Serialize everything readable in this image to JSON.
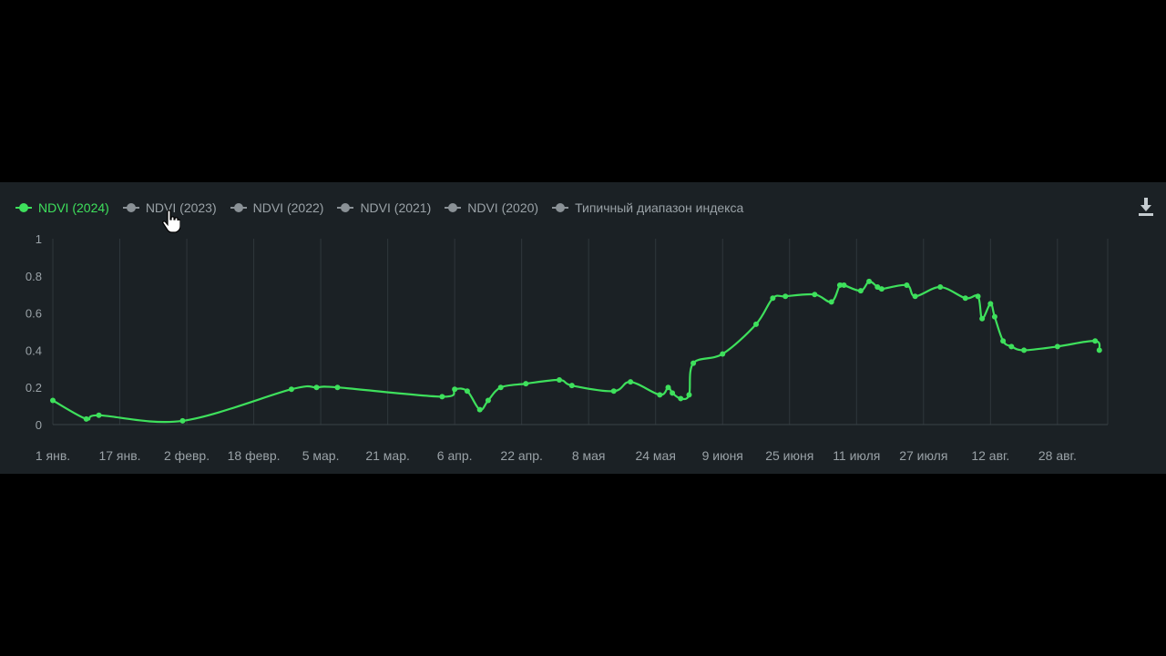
{
  "legend": [
    {
      "label": "NDVI (2024)",
      "active": true
    },
    {
      "label": "NDVI (2023)",
      "active": false
    },
    {
      "label": "NDVI (2022)",
      "active": false
    },
    {
      "label": "NDVI (2021)",
      "active": false
    },
    {
      "label": "NDVI (2020)",
      "active": false
    },
    {
      "label": "Типичный диапазон индекса",
      "active": false
    }
  ],
  "toolbar": {
    "download_icon": "download-icon"
  },
  "colors": {
    "series": "#3ee05c",
    "background": "#1b2125",
    "grid": "#2f373c",
    "text": "#9aa2a7"
  },
  "chart_data": {
    "type": "line",
    "title": "",
    "xlabel": "",
    "ylabel": "",
    "ylim": [
      0,
      1
    ],
    "y_ticks": [
      "0",
      "0.2",
      "0.4",
      "0.6",
      "0.8",
      "1"
    ],
    "x_ticks": [
      "1 янв.",
      "17 янв.",
      "2 февр.",
      "18 февр.",
      "5 мар.",
      "21 мар.",
      "6 апр.",
      "22 апр.",
      "8 мая",
      "24 мая",
      "9 июня",
      "25 июня",
      "11 июля",
      "27 июля",
      "12 авг.",
      "28 авг."
    ],
    "x_tick_days": [
      0,
      16,
      32,
      48,
      64,
      80,
      96,
      112,
      128,
      144,
      160,
      176,
      192,
      208,
      224,
      240
    ],
    "x_range_days": [
      0,
      252
    ],
    "grid": true,
    "legend_position": "top-left",
    "series": [
      {
        "name": "NDVI (2024)",
        "days": [
          0,
          8,
          11,
          31,
          57,
          63,
          68,
          93,
          96,
          99,
          102,
          104,
          107,
          113,
          121,
          124,
          134,
          138,
          145,
          147,
          148,
          150,
          152,
          153,
          160,
          168,
          172,
          175,
          182,
          186,
          188,
          189,
          193,
          195,
          197,
          198,
          204,
          206,
          212,
          218,
          221,
          222,
          224,
          225,
          227,
          229,
          232,
          240,
          249,
          250
        ],
        "values": [
          0.13,
          0.03,
          0.05,
          0.02,
          0.19,
          0.2,
          0.2,
          0.15,
          0.19,
          0.18,
          0.08,
          0.13,
          0.2,
          0.22,
          0.24,
          0.21,
          0.18,
          0.23,
          0.16,
          0.2,
          0.17,
          0.14,
          0.16,
          0.33,
          0.38,
          0.54,
          0.68,
          0.69,
          0.7,
          0.66,
          0.75,
          0.75,
          0.72,
          0.77,
          0.74,
          0.73,
          0.75,
          0.69,
          0.74,
          0.68,
          0.69,
          0.57,
          0.65,
          0.58,
          0.45,
          0.42,
          0.4,
          0.42,
          0.45,
          0.4
        ],
        "color": "#3ee05c"
      }
    ]
  }
}
